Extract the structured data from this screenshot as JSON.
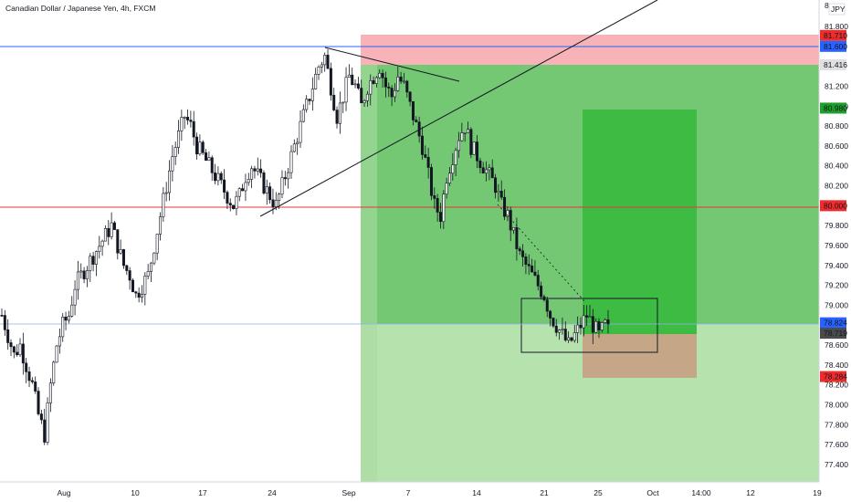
{
  "header": {
    "title": "Canadian Dollar / Japanese Yen, 4h, FXCM",
    "currency": "JPY",
    "top_tick": "8"
  },
  "colors": {
    "blue_line": "#2962ff",
    "red_line": "#e53935",
    "candle": "#131722",
    "stop_zone": "#f7b3b7",
    "target_zone": "#7ccd7c",
    "target_zone_light": "#b6e2ae",
    "inner_target": "#3dbb43",
    "inner_stop": "#c5a787"
  },
  "price_labels": [
    {
      "text": "81.710",
      "price": 81.71,
      "bg": "#ef2b2b",
      "fg": "#ffffff"
    },
    {
      "text": "81.600",
      "price": 81.6,
      "bg": "#2962ff",
      "fg": "#ffffff"
    },
    {
      "text": "81.416",
      "price": 81.416,
      "bg": "#e0e0e0",
      "fg": "#131722"
    },
    {
      "text": "80.980",
      "price": 80.98,
      "bg": "#1e9e2b",
      "fg": "#ffffff"
    },
    {
      "text": "80.000",
      "price": 80.0,
      "bg": "#ef2b2b",
      "fg": "#ffffff"
    },
    {
      "text": "78.824",
      "price": 78.824,
      "bg": "#2962ff",
      "fg": "#ffffff"
    },
    {
      "text": "78.719",
      "price": 78.719,
      "bg": "#4a4a4a",
      "fg": "#ffffff"
    },
    {
      "text": "78.284",
      "price": 78.284,
      "bg": "#ef2b2b",
      "fg": "#ffffff"
    }
  ],
  "chart_data": {
    "type": "candlestick",
    "title": "Canadian Dollar / Japanese Yen, 4h, FXCM",
    "ylim": [
      77.2,
      82.0
    ],
    "y_ticks": [
      81.8,
      81.2,
      81.0,
      80.8,
      80.6,
      80.4,
      80.2,
      79.8,
      79.6,
      79.4,
      79.2,
      79.0,
      78.6,
      78.4,
      78.2,
      78.0,
      77.8,
      77.6,
      77.4
    ],
    "x_ticks": [
      "Aug",
      "10",
      "17",
      "24",
      "Sep",
      "7",
      "14",
      "21",
      "25",
      "Oct",
      "14:00",
      "12",
      "19"
    ],
    "horizontal_lines": [
      {
        "price": 81.6,
        "color": "blue"
      },
      {
        "price": 80.0,
        "color": "red"
      },
      {
        "price": 78.824,
        "color": "light-blue"
      }
    ],
    "close_path": [
      78.9,
      78.7,
      78.5,
      78.6,
      78.4,
      78.2,
      77.9,
      77.7,
      78.2,
      78.6,
      78.8,
      78.9,
      79.2,
      79.3,
      79.4,
      79.5,
      79.6,
      79.7,
      79.8,
      79.6,
      79.4,
      79.3,
      79.1,
      79.2,
      79.3,
      79.6,
      79.9,
      80.2,
      80.5,
      80.7,
      80.9,
      80.8,
      80.6,
      80.5,
      80.4,
      80.3,
      80.2,
      80.1,
      80.0,
      80.1,
      80.3,
      80.4,
      80.3,
      80.2,
      80.1,
      80.0,
      80.2,
      80.4,
      80.6,
      80.8,
      81.0,
      81.2,
      81.4,
      81.5,
      81.2,
      80.9,
      81.1,
      81.3,
      81.2,
      81.0,
      81.2,
      81.3,
      81.4,
      81.2,
      81.1,
      81.3,
      81.2,
      81.0,
      80.8,
      80.6,
      80.3,
      80.0,
      79.9,
      80.3,
      80.5,
      80.7,
      80.8,
      80.6,
      80.5,
      80.4,
      80.3,
      80.2,
      80.0,
      79.9,
      79.7,
      79.5,
      79.4,
      79.3,
      79.2,
      79.1,
      78.9,
      78.8,
      78.7,
      78.6,
      78.7,
      78.8,
      78.9,
      78.8,
      78.7,
      78.8,
      78.7
    ]
  }
}
